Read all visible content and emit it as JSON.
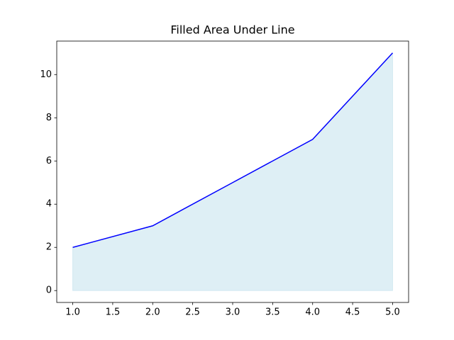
{
  "chart_data": {
    "type": "area",
    "title": "Filled Area Under Line",
    "x": [
      1,
      2,
      3,
      4,
      5
    ],
    "values": [
      2,
      3,
      5,
      7,
      11
    ],
    "color": "#0000ff",
    "fill_color": "#add8e6",
    "fill_opacity": 0.4,
    "xlim": [
      0.8,
      5.2
    ],
    "xticks": [
      {
        "value": 1,
        "label": "1.0"
      },
      {
        "value": 1.5,
        "label": "1.5"
      },
      {
        "value": 2,
        "label": "2.0"
      },
      {
        "value": 2.5,
        "label": "2.5"
      },
      {
        "value": 3,
        "label": "3.0"
      },
      {
        "value": 3.5,
        "label": "3.5"
      },
      {
        "value": 4,
        "label": "4.0"
      },
      {
        "value": 4.5,
        "label": "4.5"
      },
      {
        "value": 5,
        "label": "5.0"
      }
    ],
    "ylim": [
      -0.55,
      11.55
    ],
    "yticks": [
      0,
      2,
      4,
      6,
      8,
      10
    ],
    "grid": false
  }
}
